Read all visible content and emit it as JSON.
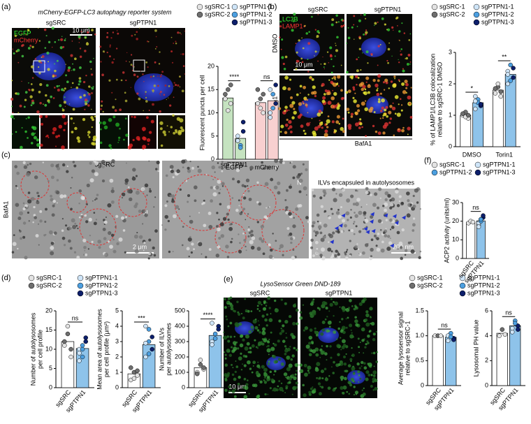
{
  "panels": [
    {
      "label": "(a)",
      "title": "mCherry-EGFP-LC3 autophagy reporter system",
      "texts": [
        "sgSRC",
        "sgPTPN1",
        "EGFP",
        "mCherry",
        "10 μm"
      ],
      "legend": [
        {
          "name": "sgSRC-1",
          "color": "#e3e3e3"
        },
        {
          "name": "sgSRC-2",
          "color": "#6e6e6e"
        },
        {
          "name": "sgPTPN1-1",
          "color": "#cfe5f8"
        },
        {
          "name": "sgPTPN1-2",
          "color": "#4c9fe0"
        },
        {
          "name": "sgPTPN1-3",
          "color": "#0d1f6b"
        }
      ],
      "charts": [
        {
          "type": "bar",
          "ylabel": [
            "Fluorescent puncta per cell"
          ],
          "ylim": [
            0,
            20
          ],
          "yticks": [
            0,
            5,
            10,
            15,
            20
          ],
          "groups": [
            "EGFP",
            "mCherry"
          ],
          "values": [
            13.2,
            4.5,
            12.2,
            12.6
          ],
          "colors": [
            "#c5e3c0",
            "#c5e3c0",
            "#f8d0d0",
            "#f8d0d0"
          ],
          "points": [
            [
              13,
              15,
              12,
              14,
              10.5,
              16
            ],
            [
              4,
              3,
              6,
              5,
              2.5,
              8,
              4
            ],
            [
              12,
              13,
              10,
              15,
              11,
              14
            ],
            [
              9,
              14,
              12,
              15,
              11,
              16,
              10
            ]
          ],
          "annotations": [
            "****",
            "ns"
          ]
        }
      ]
    },
    {
      "label": "(b)",
      "texts": [
        "sgSRC",
        "sgPTPN1",
        "DMSO",
        "Torin1",
        "LC3B",
        "LAMP1",
        "10 μm",
        "BafA1"
      ],
      "legend": [
        {
          "name": "sgSRC-1",
          "color": "#e3e3e3"
        },
        {
          "name": "sgSRC-2",
          "color": "#6e6e6e"
        },
        {
          "name": "sgPTPN1-1",
          "color": "#cfe5f8"
        },
        {
          "name": "sgPTPN1-2",
          "color": "#4c9fe0"
        },
        {
          "name": "sgPTPN1-3",
          "color": "#0d1f6b"
        }
      ],
      "charts": [
        {
          "type": "bar",
          "ylabel": [
            "% of LAMP1/LC3B colocalization",
            "relative to sgSRC-1 DMSO"
          ],
          "ylim": [
            0,
            3
          ],
          "yticks": [
            0,
            1,
            2,
            3
          ],
          "groups": [
            "DMSO",
            "Torin1"
          ],
          "values": [
            1.0,
            1.4,
            1.8,
            2.3
          ],
          "colors": [
            "#ffffff",
            "#8ec3ea",
            "#ffffff",
            "#8ec3ea"
          ],
          "points": [
            [
              1,
              1.1,
              0.9,
              1.05,
              0.95,
              1
            ],
            [
              1.2,
              1.5,
              1.3,
              1.6,
              1.4,
              1.35,
              1.45
            ],
            [
              1.7,
              1.9,
              1.6,
              1.85,
              2.0,
              1.75
            ],
            [
              2.0,
              2.6,
              2.2,
              2.4,
              2.1,
              2.5,
              2.3
            ]
          ],
          "annotations": [
            "*",
            "**"
          ]
        }
      ]
    },
    {
      "label": "(c)",
      "texts": [
        "sgSRC",
        "sgPTPN1",
        "ILVs encapsuled in autolysosomes",
        "BafA1",
        "N",
        "N",
        "2 μm",
        "200 nm"
      ]
    },
    {
      "label": "(d)",
      "legend": [
        {
          "name": "sgSRC-1",
          "color": "#e3e3e3"
        },
        {
          "name": "sgSRC-2",
          "color": "#6e6e6e"
        },
        {
          "name": "sgPTPN1-1",
          "color": "#cfe5f8"
        },
        {
          "name": "sgPTPN1-2",
          "color": "#4c9fe0"
        },
        {
          "name": "sgPTPN1-3",
          "color": "#0d1f6b"
        }
      ],
      "charts": [
        {
          "type": "bar",
          "ylabel": [
            "Number of autolysosomes",
            "per cell profile"
          ],
          "ylim": [
            0,
            20
          ],
          "yticks": [
            0,
            5,
            10,
            15,
            20
          ],
          "categories": [
            "sgSRC",
            "sgPTPN1"
          ],
          "values": [
            12,
            10.2
          ],
          "colors": [
            "#ffffff",
            "#8ec3ea"
          ],
          "points": [
            [
              11,
              14,
              8,
              12,
              16,
              10
            ],
            [
              10,
              8,
              12,
              9,
              11,
              13,
              7,
              10
            ]
          ],
          "annotations": [
            "ns"
          ]
        },
        {
          "type": "bar",
          "ylabel": [
            "Mean area of autolysosomes",
            "per cell profile (μm²)"
          ],
          "ylim": [
            0,
            5
          ],
          "yticks": [
            0,
            1,
            2,
            3,
            4,
            5
          ],
          "categories": [
            "sgSRC",
            "sgPTPN1"
          ],
          "values": [
            0.9,
            2.8
          ],
          "colors": [
            "#ffffff",
            "#8ec3ea"
          ],
          "points": [
            [
              0.5,
              1,
              0.8,
              1.3,
              0.6,
              1.1
            ],
            [
              2,
              3,
              2.5,
              4,
              2.2,
              3.3,
              2.9,
              3.8
            ]
          ],
          "annotations": [
            "***"
          ]
        },
        {
          "type": "bar",
          "ylabel": [
            "Number of ILVs",
            "per autolysosomes"
          ],
          "ylim": [
            0,
            500
          ],
          "yticks": [
            0,
            100,
            200,
            300,
            400,
            500
          ],
          "categories": [
            "sgSRC",
            "sgPTPN1"
          ],
          "values": [
            130,
            340
          ],
          "colors": [
            "#ffffff",
            "#8ec3ea"
          ],
          "points": [
            [
              100,
              150,
              120,
              90,
              180,
              130
            ],
            [
              300,
              350,
              400,
              280,
              320,
              380,
              420
            ]
          ],
          "annotations": [
            "****"
          ]
        }
      ]
    },
    {
      "label": "(e)",
      "title": "LysoSensor Green DND-189",
      "texts": [
        "sgSRC",
        "sgPTPN1",
        "10 μm"
      ],
      "legend": [
        {
          "name": "sgSRC-1",
          "color": "#e3e3e3"
        },
        {
          "name": "sgSRC-2",
          "color": "#6e6e6e"
        },
        {
          "name": "sgPTPN1-1",
          "color": "#cfe5f8"
        },
        {
          "name": "sgPTPN1-2",
          "color": "#4c9fe0"
        },
        {
          "name": "sgPTPN1-3",
          "color": "#0d1f6b"
        }
      ],
      "charts": [
        {
          "type": "bar",
          "ylabel": [
            "Average lysosensor signal",
            "relative to sgSRC-1"
          ],
          "ylim": [
            0,
            1.5
          ],
          "yticks": [
            0,
            0.5,
            {
              "value": 1,
              "label": "1.0"
            },
            1.5
          ],
          "categories": [
            "sgSRC",
            "sgPTPN1"
          ],
          "values": [
            1,
            0.97
          ],
          "colors": [
            "#ffffff",
            "#8ec3ea"
          ],
          "points": [
            [
              1,
              1,
              1
            ],
            [
              0.9,
              1.05,
              0.95,
              1,
              0.98,
              0.92
            ]
          ],
          "annotations": [
            "ns"
          ]
        },
        {
          "type": "bar",
          "ylabel": [
            "Lysosomal PH value"
          ],
          "ylim": [
            0,
            6
          ],
          "yticks": [
            0,
            2,
            4,
            6
          ],
          "categories": [
            "sgSRC",
            "sgPTPN1"
          ],
          "values": [
            4.2,
            4.8
          ],
          "colors": [
            "#ffffff",
            "#8ec3ea"
          ],
          "points": [
            [
              4,
              4.5,
              4.1
            ],
            [
              4.3,
              5.2,
              4.8,
              4.6,
              5,
              4.5
            ]
          ],
          "annotations": [
            "ns"
          ]
        }
      ]
    },
    {
      "label": "(f)",
      "legend": [
        {
          "name": "sgSRC-1",
          "color": "#e3e3e3"
        },
        {
          "name": "sgPTPN1-1",
          "color": "#cfe5f8"
        },
        {
          "name": "sgPTPN1-2",
          "color": "#4c9fe0"
        },
        {
          "name": "sgPTPN1-3",
          "color": "#0d1f6b"
        }
      ],
      "charts": [
        {
          "type": "bar",
          "ylabel": [
            "ACP2 activity (units/ml)"
          ],
          "ylim": [
            0,
            30
          ],
          "yticks": [
            0,
            10,
            20,
            30
          ],
          "categories": [
            "sgSRC",
            "sgPTPN1"
          ],
          "values": [
            19.5,
            20.2
          ],
          "colors": [
            "#ffffff",
            "#8ec3ea"
          ],
          "points": [
            [
              19,
              20,
              19.5
            ],
            [
              18,
              21,
              22,
              19,
              20,
              23,
              17,
              21
            ]
          ],
          "annotations": [
            "ns"
          ]
        }
      ]
    }
  ]
}
